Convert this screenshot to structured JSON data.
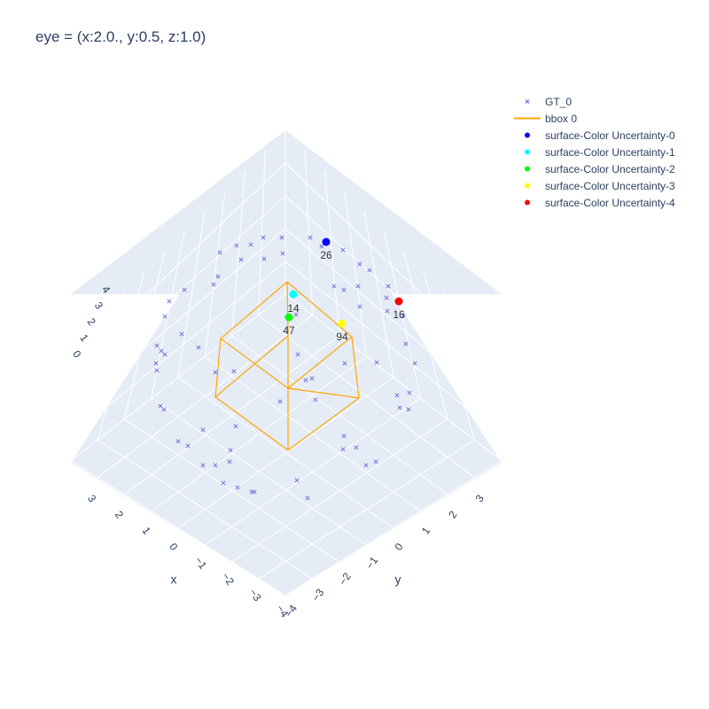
{
  "chart_data": {
    "type": "scatter",
    "title": "eye = (x:2.0., y:0.5, z:1.0)",
    "axes": {
      "x": {
        "label": "x",
        "ticks": [
          "3",
          "2",
          "1",
          "0",
          "−1",
          "−2",
          "−3",
          "−4"
        ]
      },
      "y": {
        "label": "y",
        "ticks": [
          "3",
          "2",
          "1",
          "0",
          "−1",
          "−2",
          "−3",
          "−4"
        ]
      },
      "z": {
        "label": "",
        "ticks": [
          "4",
          "3",
          "2",
          "1",
          "0"
        ]
      },
      "background": "#e5ecf6",
      "grid": true
    },
    "legend_position": "top-right",
    "series": [
      {
        "name": "GT_0",
        "kind": "marker-x",
        "color": "#5b5bd6"
      },
      {
        "name": "bbox 0",
        "kind": "line",
        "color": "#ffa500"
      },
      {
        "name": "surface-Color Uncertainty-0",
        "kind": "marker-dot",
        "color": "#0000ff",
        "label": "26"
      },
      {
        "name": "surface-Color Uncertainty-1",
        "kind": "marker-dot",
        "color": "#00ffff",
        "label": "14"
      },
      {
        "name": "surface-Color Uncertainty-2",
        "kind": "marker-dot",
        "color": "#00ff00",
        "label": "47"
      },
      {
        "name": "surface-Color Uncertainty-3",
        "kind": "marker-dot",
        "color": "#ffff00",
        "label": "94"
      },
      {
        "name": "surface-Color Uncertainty-4",
        "kind": "marker-dot",
        "color": "#ff0000",
        "label": "16"
      }
    ]
  }
}
